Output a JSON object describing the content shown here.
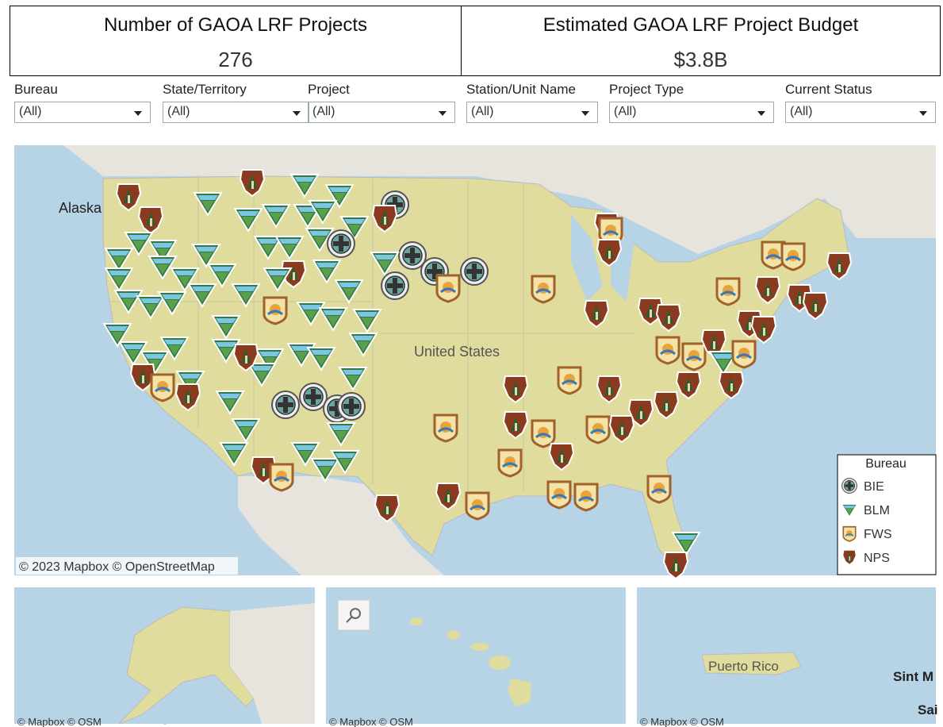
{
  "kpis": [
    {
      "title": "Number of GAOA LRF Projects",
      "value": 276
    },
    {
      "title": "Estimated GAOA LRF Project Budget",
      "value": "$3.8B"
    }
  ],
  "filters": [
    {
      "label": "Bureau",
      "value": "(All)"
    },
    {
      "label": "State/Territory",
      "value": "(All)"
    },
    {
      "label": "Project",
      "value": "(All)"
    },
    {
      "label": "Station/Unit Name",
      "value": "(All)"
    },
    {
      "label": "Project Type",
      "value": "(All)"
    },
    {
      "label": "Current Status",
      "value": "(All)"
    }
  ],
  "main_map": {
    "labels": [
      "Alaska",
      "United States"
    ],
    "attribution": "© 2023 Mapbox  © OpenStreetMap"
  },
  "legend": {
    "title": "Bureau",
    "items": [
      "BIE",
      "BLM",
      "FWS",
      "NPS"
    ]
  },
  "inset_maps": [
    {
      "attribution": "© Mapbox  © OSM"
    },
    {
      "attribution": "© Mapbox  © OSM"
    },
    {
      "labels": [
        "Puerto Rico",
        "Sint M",
        "Sai"
      ],
      "attribution": "© Mapbox  © OSM"
    }
  ]
}
